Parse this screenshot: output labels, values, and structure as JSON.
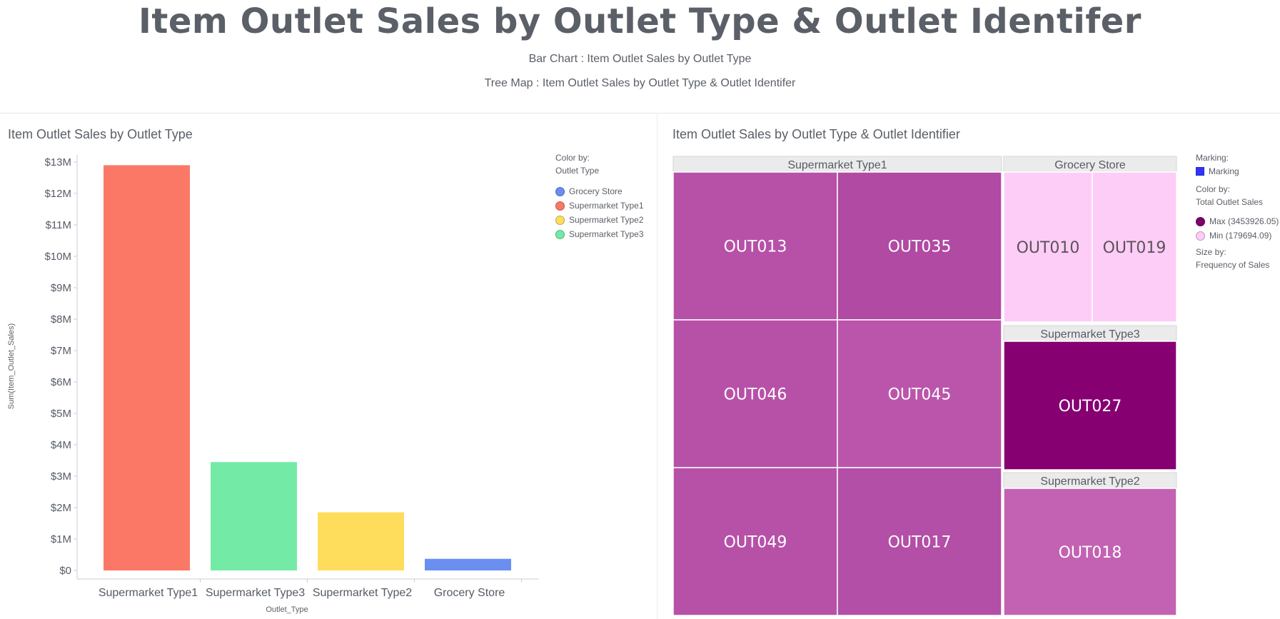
{
  "header": {
    "title": "Item Outlet Sales by Outlet Type & Outlet Identifer",
    "subtitle_1": "Bar Chart : Item Outlet Sales by Outlet Type",
    "subtitle_2": "Tree Map : Item Outlet Sales by Outlet Type & Outlet Identifer"
  },
  "chart_data": [
    {
      "type": "bar",
      "title": "Item Outlet Sales by Outlet Type",
      "xlabel": "Outlet_Type",
      "ylabel": "Sum(Item_Outlet_Sales)",
      "categories": [
        "Supermarket Type1",
        "Supermarket Type3",
        "Supermarket Type2",
        "Grocery Store"
      ],
      "values": [
        12900000,
        3450000,
        1850000,
        370000
      ],
      "colors": [
        "#fb7866",
        "#73eba7",
        "#ffdd5c",
        "#6a8ff0"
      ],
      "ylim": [
        0,
        13000000
      ],
      "yticks": [
        0,
        1000000,
        2000000,
        3000000,
        4000000,
        5000000,
        6000000,
        7000000,
        8000000,
        9000000,
        10000000,
        11000000,
        12000000,
        13000000
      ],
      "ytick_labels": [
        "$0",
        "$1M",
        "$2M",
        "$3M",
        "$4M",
        "$5M",
        "$6M",
        "$7M",
        "$8M",
        "$9M",
        "$10M",
        "$11M",
        "$12M",
        "$13M"
      ],
      "legend": {
        "placement": "right",
        "heading": "Color by:",
        "field": "Outlet Type",
        "entries": [
          {
            "label": "Grocery Store",
            "color": "#6a8ff0"
          },
          {
            "label": "Supermarket Type1",
            "color": "#fb7866"
          },
          {
            "label": "Supermarket Type2",
            "color": "#ffdd5c"
          },
          {
            "label": "Supermarket Type3",
            "color": "#73eba7"
          }
        ]
      }
    },
    {
      "type": "treemap",
      "title": "Item Outlet Sales by Outlet Type & Outlet Identifier",
      "groups": [
        {
          "name": "Supermarket Type1",
          "children": [
            "OUT013",
            "OUT035",
            "OUT046",
            "OUT045",
            "OUT049",
            "OUT017"
          ]
        },
        {
          "name": "Grocery Store",
          "children": [
            "OUT010",
            "OUT019"
          ]
        },
        {
          "name": "Supermarket Type3",
          "children": [
            "OUT027"
          ]
        },
        {
          "name": "Supermarket Type2",
          "children": [
            "OUT018"
          ]
        }
      ],
      "cell_colors": {
        "OUT013": "#b751a8",
        "OUT035": "#b04aa3",
        "OUT046": "#b751a8",
        "OUT045": "#bb55ab",
        "OUT049": "#b751a8",
        "OUT017": "#b34fa6",
        "OUT010": "#fdcdf7",
        "OUT019": "#fdcdf7",
        "OUT027": "#860071",
        "OUT018": "#c362b2"
      },
      "legend": {
        "placement": "right",
        "marking_heading": "Marking:",
        "marking_label": "Marking",
        "marking_color": "#3333ff",
        "color_heading": "Color by:",
        "color_field": "Total Outlet Sales",
        "max_label": "Max (3453926.05)",
        "max_color": "#7e006b",
        "min_label": "Min (179694.09)",
        "min_color": "#fdcdf7",
        "size_heading": "Size by:",
        "size_field": "Frequency of Sales"
      }
    }
  ]
}
